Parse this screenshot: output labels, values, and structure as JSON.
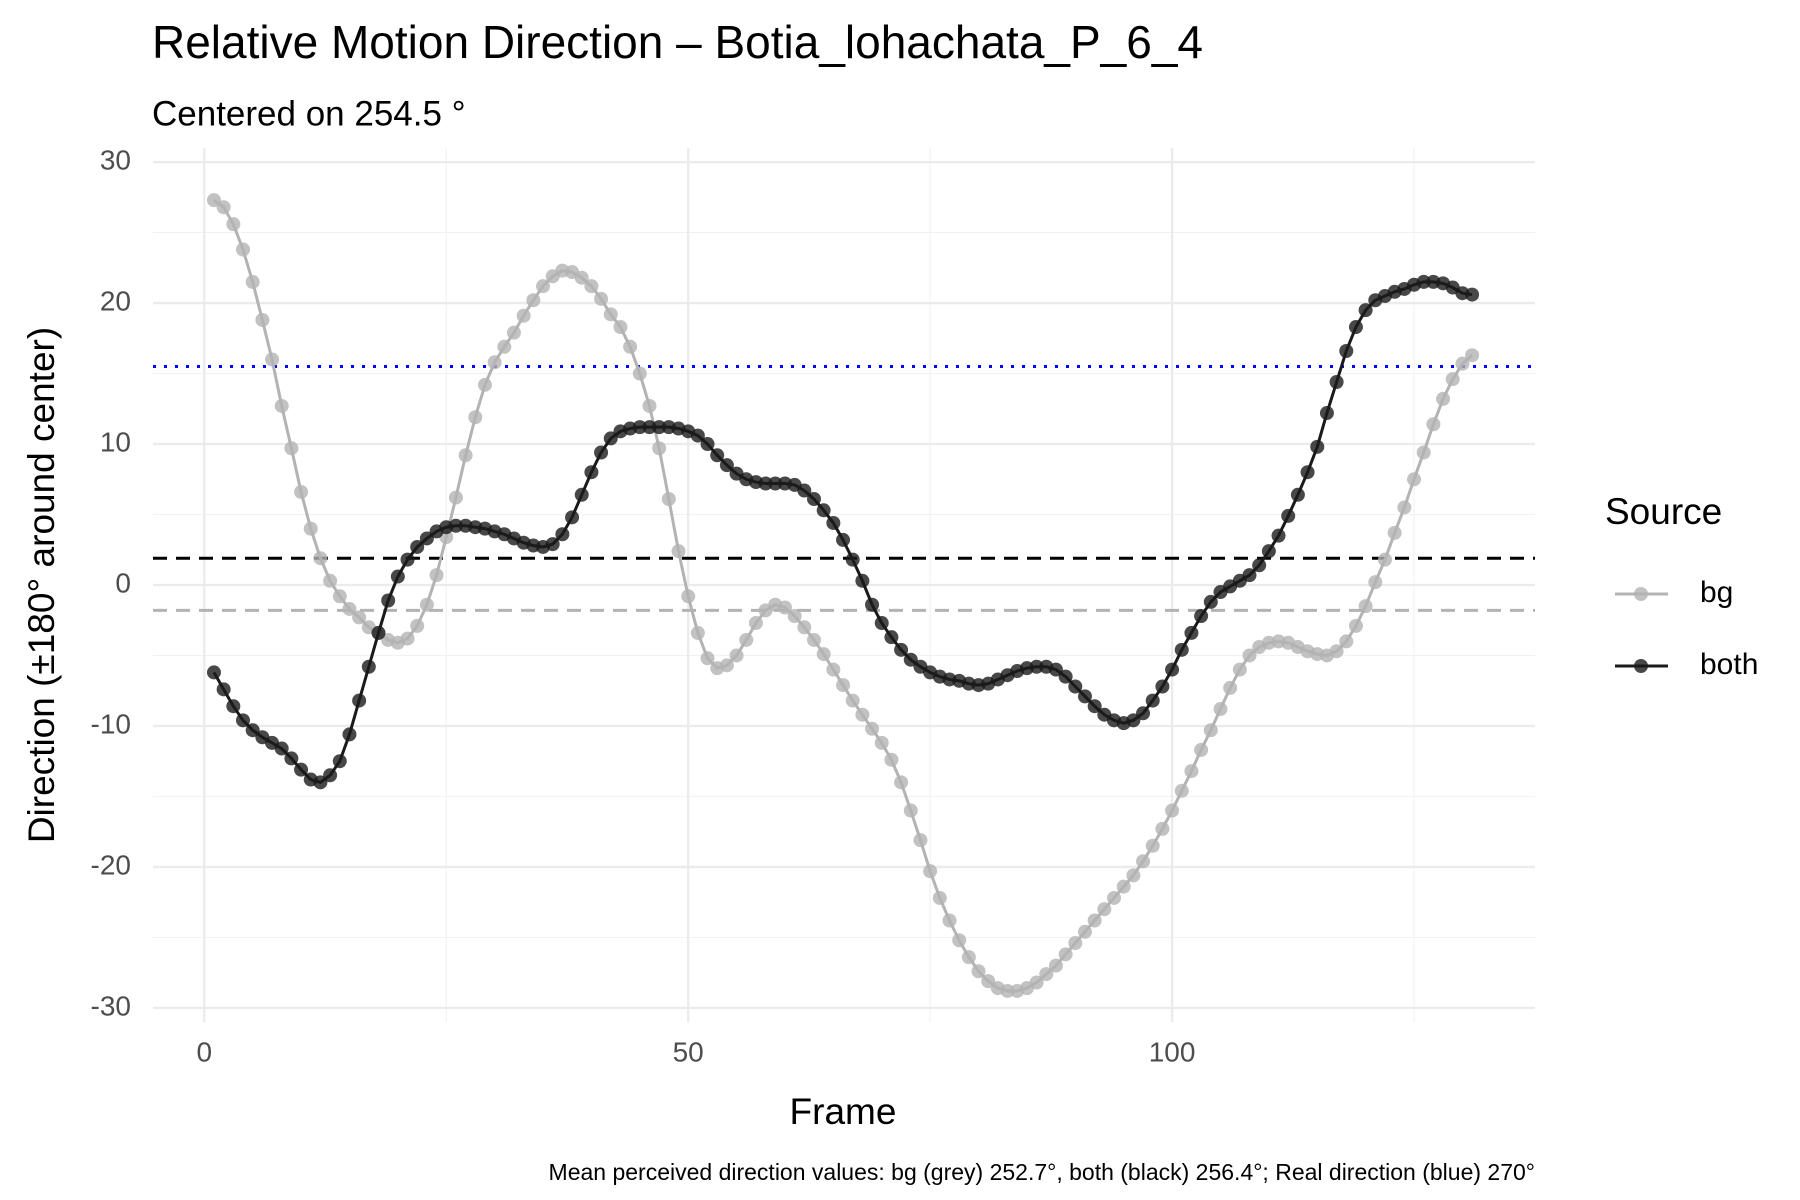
{
  "chart_data": {
    "type": "line",
    "title": "Relative Motion Direction – Botia_lohachata_P_6_4",
    "subtitle": "Centered on  254.5 °",
    "x_label": "Frame",
    "y_label": "Direction (±180° around center)",
    "caption": "Mean perceived direction values: bg (grey) 252.7°, both (black) 256.4°; Real direction (blue) 270°",
    "legend_title": "Source",
    "legend_position": "right",
    "grid": true,
    "xlim": [
      -5.3,
      137.5
    ],
    "ylim": [
      -31,
      31
    ],
    "xticks": [
      0,
      50,
      100
    ],
    "yticks": [
      -30,
      -20,
      -10,
      0,
      10,
      20,
      30
    ],
    "x_minor_ticks": [
      25,
      75,
      125
    ],
    "y_minor_ticks": [
      -25,
      -15,
      -5,
      5,
      15,
      25
    ],
    "reference_lines": [
      {
        "value": 15.5,
        "color": "#0000ff",
        "style": "dotted"
      },
      {
        "value": 1.9,
        "color": "#000000",
        "style": "dashed"
      },
      {
        "value": -1.8,
        "color": "#b3b3b3",
        "style": "dashed"
      }
    ],
    "x": [
      1,
      2,
      3,
      4,
      5,
      6,
      7,
      8,
      9,
      10,
      11,
      12,
      13,
      14,
      15,
      16,
      17,
      18,
      19,
      20,
      21,
      22,
      23,
      24,
      25,
      26,
      27,
      28,
      29,
      30,
      31,
      32,
      33,
      34,
      35,
      36,
      37,
      38,
      39,
      40,
      41,
      42,
      43,
      44,
      45,
      46,
      47,
      48,
      49,
      50,
      51,
      52,
      53,
      54,
      55,
      56,
      57,
      58,
      59,
      60,
      61,
      62,
      63,
      64,
      65,
      66,
      67,
      68,
      69,
      70,
      71,
      72,
      73,
      74,
      75,
      76,
      77,
      78,
      79,
      80,
      81,
      82,
      83,
      84,
      85,
      86,
      87,
      88,
      89,
      90,
      91,
      92,
      93,
      94,
      95,
      96,
      97,
      98,
      99,
      100,
      101,
      102,
      103,
      104,
      105,
      106,
      107,
      108,
      109,
      110,
      111,
      112,
      113,
      114,
      115,
      116,
      117,
      118,
      119,
      120,
      121,
      122,
      123,
      124,
      125,
      126,
      127,
      128,
      129,
      130,
      131
    ],
    "series": [
      {
        "name": "bg",
        "color": "#b3b3b3",
        "values": [
          27.3,
          26.8,
          25.6,
          23.8,
          21.5,
          18.8,
          16.0,
          12.7,
          9.7,
          6.6,
          4.0,
          1.9,
          0.3,
          -0.8,
          -1.7,
          -2.3,
          -3.0,
          -3.4,
          -3.9,
          -4.1,
          -3.8,
          -2.9,
          -1.4,
          0.7,
          3.4,
          6.2,
          9.2,
          11.9,
          14.2,
          15.8,
          16.9,
          17.9,
          19.1,
          20.2,
          21.2,
          21.9,
          22.3,
          22.2,
          21.8,
          21.2,
          20.3,
          19.2,
          18.3,
          16.9,
          15.0,
          12.7,
          9.7,
          6.1,
          2.4,
          -0.8,
          -3.4,
          -5.2,
          -5.9,
          -5.7,
          -5.0,
          -3.9,
          -2.7,
          -1.8,
          -1.4,
          -1.6,
          -2.2,
          -3.0,
          -3.9,
          -4.9,
          -6.0,
          -7.1,
          -8.2,
          -9.2,
          -10.2,
          -11.2,
          -12.4,
          -14.0,
          -16.0,
          -18.1,
          -20.3,
          -22.2,
          -23.8,
          -25.2,
          -26.4,
          -27.4,
          -28.1,
          -28.6,
          -28.8,
          -28.8,
          -28.6,
          -28.2,
          -27.6,
          -27.0,
          -26.2,
          -25.4,
          -24.6,
          -23.8,
          -23.0,
          -22.2,
          -21.4,
          -20.6,
          -19.6,
          -18.5,
          -17.3,
          -16.0,
          -14.6,
          -13.2,
          -11.7,
          -10.3,
          -8.8,
          -7.3,
          -6.0,
          -5.0,
          -4.4,
          -4.1,
          -4.0,
          -4.1,
          -4.4,
          -4.7,
          -4.9,
          -5.0,
          -4.7,
          -4.0,
          -2.9,
          -1.5,
          0.2,
          1.8,
          3.7,
          5.5,
          7.5,
          9.4,
          11.4,
          13.2,
          14.6,
          15.7,
          16.3
        ]
      },
      {
        "name": "both",
        "color": "#1a1a1a",
        "values": [
          -6.2,
          -7.4,
          -8.6,
          -9.6,
          -10.3,
          -10.8,
          -11.2,
          -11.6,
          -12.3,
          -13.1,
          -13.8,
          -14.0,
          -13.5,
          -12.5,
          -10.6,
          -8.2,
          -5.8,
          -3.4,
          -1.1,
          0.6,
          1.8,
          2.7,
          3.3,
          3.8,
          4.1,
          4.2,
          4.2,
          4.1,
          4.0,
          3.8,
          3.6,
          3.3,
          3.0,
          2.8,
          2.7,
          2.9,
          3.6,
          4.8,
          6.4,
          8.0,
          9.4,
          10.4,
          10.9,
          11.1,
          11.2,
          11.2,
          11.2,
          11.2,
          11.1,
          10.9,
          10.6,
          10.0,
          9.2,
          8.5,
          7.9,
          7.5,
          7.3,
          7.2,
          7.2,
          7.2,
          7.1,
          6.7,
          6.1,
          5.3,
          4.4,
          3.2,
          1.8,
          0.3,
          -1.4,
          -2.7,
          -3.7,
          -4.6,
          -5.3,
          -5.8,
          -6.2,
          -6.5,
          -6.7,
          -6.8,
          -7.0,
          -7.1,
          -7.0,
          -6.7,
          -6.4,
          -6.1,
          -5.9,
          -5.8,
          -5.8,
          -6.0,
          -6.5,
          -7.2,
          -7.9,
          -8.6,
          -9.2,
          -9.6,
          -9.8,
          -9.6,
          -9.1,
          -8.2,
          -7.2,
          -6.0,
          -4.6,
          -3.4,
          -2.2,
          -1.2,
          -0.5,
          -0.1,
          0.3,
          0.7,
          1.4,
          2.4,
          3.5,
          4.9,
          6.4,
          8.0,
          9.8,
          12.2,
          14.4,
          16.6,
          18.3,
          19.5,
          20.2,
          20.5,
          20.8,
          21.0,
          21.3,
          21.5,
          21.5,
          21.4,
          21.1,
          20.7,
          20.6
        ]
      }
    ]
  }
}
